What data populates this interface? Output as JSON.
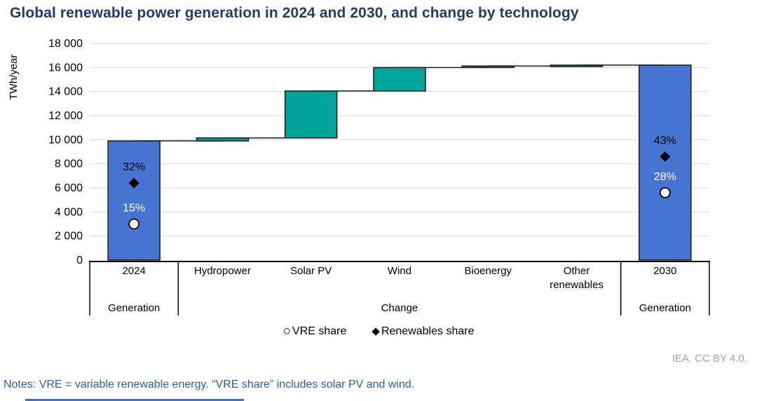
{
  "page": {
    "credit": "IEA. CC BY 4.0.",
    "notes": "Notes: VRE = variable renewable energy. “VRE share” includes solar PV and wind."
  },
  "legend": [
    {
      "glyph": "○",
      "label": "VRE share"
    },
    {
      "glyph": "◆",
      "label": "Renewables share"
    }
  ],
  "colors": {
    "title_text": "#1F3D73",
    "total_bar": "#4674D2",
    "change_bar": "#00A49A",
    "bar_border": "#1A1A1A",
    "gridline": "#D9D9D9",
    "axis_line": "#000000",
    "tick_text": "#000000",
    "notes_text": "#2A5CA8",
    "credit_text": "#A3A3A3",
    "bottom_rule": "#3E74BC"
  },
  "chart_data": {
    "type": "waterfall",
    "title": "Global renewable power generation in 2024 and 2030, and change by technology",
    "ylabel": "TWh/year",
    "ylim": [
      0,
      18000
    ],
    "ytick_step": 2000,
    "ytick_labels": [
      "0",
      "2 000",
      "4 000",
      "6 000",
      "8 000",
      "10 000",
      "12 000",
      "14 000",
      "16 000",
      "18 000"
    ],
    "grid": "horizontal",
    "legend_position": "bottom-center",
    "categories": [
      "2024",
      "Hydropower",
      "Solar PV",
      "Wind",
      "Bioenergy",
      "Other renewables",
      "2030"
    ],
    "groups": [
      {
        "label": "Generation",
        "from": 0,
        "to": 0
      },
      {
        "label": "Change",
        "from": 1,
        "to": 5
      },
      {
        "label": "Generation",
        "from": 6,
        "to": 6
      }
    ],
    "bars": [
      {
        "category": "2024",
        "role": "total",
        "start": 0,
        "end": 9900
      },
      {
        "category": "Hydropower",
        "role": "change",
        "start": 9900,
        "end": 10150
      },
      {
        "category": "Solar PV",
        "role": "change",
        "start": 10150,
        "end": 14050
      },
      {
        "category": "Wind",
        "role": "change",
        "start": 14050,
        "end": 16000
      },
      {
        "category": "Bioenergy",
        "role": "change",
        "start": 16000,
        "end": 16130
      },
      {
        "category": "Other renewables",
        "role": "change",
        "start": 16130,
        "end": 16200
      },
      {
        "category": "2030",
        "role": "total",
        "start": 0,
        "end": 16200
      }
    ],
    "markers": [
      {
        "category": "2024",
        "series": "Renewables share",
        "label": "32%",
        "pct": 32,
        "y_value": 6400,
        "label_color": "#000000"
      },
      {
        "category": "2024",
        "series": "VRE share",
        "label": "15%",
        "pct": 15,
        "y_value": 3000,
        "label_color": "#FFFFFF"
      },
      {
        "category": "2030",
        "series": "Renewables share",
        "label": "43%",
        "pct": 43,
        "y_value": 8600,
        "label_color": "#000000"
      },
      {
        "category": "2030",
        "series": "VRE share",
        "label": "28%",
        "pct": 28,
        "y_value": 5600,
        "label_color": "#FFFFFF"
      }
    ]
  }
}
